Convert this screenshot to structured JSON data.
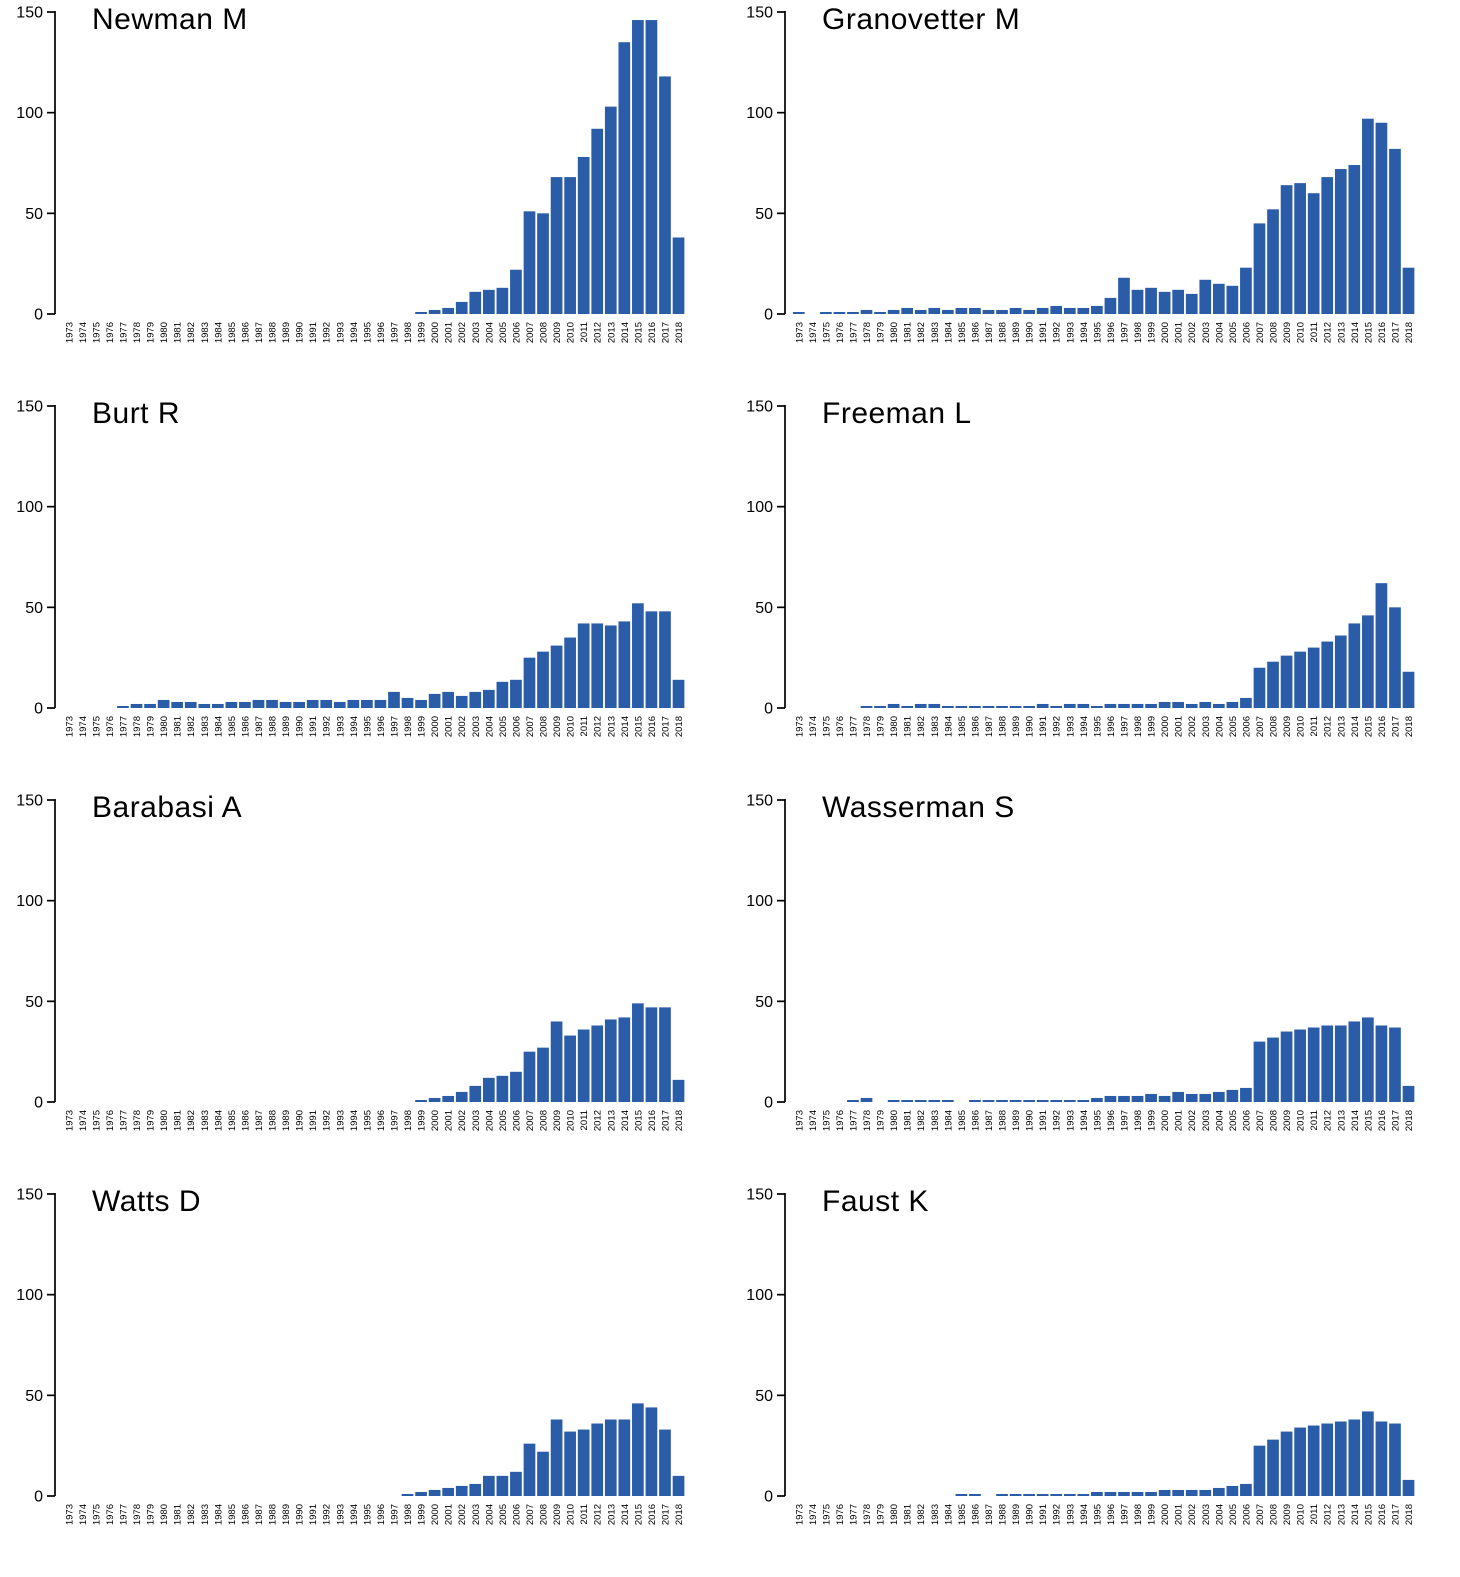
{
  "figure": {
    "bar_color": "#2A5CA8",
    "axis_color": "#000000",
    "background": "#FFFFFF"
  },
  "chart_data": [
    {
      "type": "bar",
      "title": "Newman M",
      "xlabel": "",
      "ylabel": "",
      "ylim": [
        0,
        150
      ],
      "yticks": [
        0,
        50,
        100,
        150
      ],
      "categories": [
        1973,
        1974,
        1975,
        1976,
        1977,
        1978,
        1979,
        1980,
        1981,
        1982,
        1983,
        1984,
        1985,
        1986,
        1987,
        1988,
        1989,
        1990,
        1991,
        1992,
        1993,
        1994,
        1995,
        1996,
        1997,
        1998,
        1999,
        2000,
        2001,
        2002,
        2003,
        2004,
        2005,
        2006,
        2007,
        2008,
        2009,
        2010,
        2011,
        2012,
        2013,
        2014,
        2015,
        2016,
        2017,
        2018
      ],
      "values": [
        0,
        0,
        0,
        0,
        0,
        0,
        0,
        0,
        0,
        0,
        0,
        0,
        0,
        0,
        0,
        0,
        0,
        0,
        0,
        0,
        0,
        0,
        0,
        0,
        0,
        0,
        1,
        2,
        3,
        6,
        11,
        12,
        13,
        22,
        51,
        50,
        68,
        68,
        78,
        92,
        103,
        135,
        146,
        146,
        118,
        38
      ]
    },
    {
      "type": "bar",
      "title": "Granovetter M",
      "xlabel": "",
      "ylabel": "",
      "ylim": [
        0,
        150
      ],
      "yticks": [
        0,
        50,
        100,
        150
      ],
      "categories": [
        1973,
        1974,
        1975,
        1976,
        1977,
        1978,
        1979,
        1980,
        1981,
        1982,
        1983,
        1984,
        1985,
        1986,
        1987,
        1988,
        1989,
        1990,
        1991,
        1992,
        1993,
        1994,
        1995,
        1996,
        1997,
        1998,
        1999,
        2000,
        2001,
        2002,
        2003,
        2004,
        2005,
        2006,
        2007,
        2008,
        2009,
        2010,
        2011,
        2012,
        2013,
        2014,
        2015,
        2016,
        2017,
        2018
      ],
      "values": [
        1,
        0,
        1,
        1,
        1,
        2,
        1,
        2,
        3,
        2,
        3,
        2,
        3,
        3,
        2,
        2,
        3,
        2,
        3,
        4,
        3,
        3,
        4,
        8,
        18,
        12,
        13,
        11,
        12,
        10,
        17,
        15,
        14,
        23,
        45,
        52,
        64,
        65,
        60,
        68,
        72,
        74,
        97,
        95,
        82,
        23
      ]
    },
    {
      "type": "bar",
      "title": "Burt R",
      "xlabel": "",
      "ylabel": "",
      "ylim": [
        0,
        150
      ],
      "yticks": [
        0,
        50,
        100,
        150
      ],
      "categories": [
        1973,
        1974,
        1975,
        1976,
        1977,
        1978,
        1979,
        1980,
        1981,
        1982,
        1983,
        1984,
        1985,
        1986,
        1987,
        1988,
        1989,
        1990,
        1991,
        1992,
        1993,
        1994,
        1995,
        1996,
        1997,
        1998,
        1999,
        2000,
        2001,
        2002,
        2003,
        2004,
        2005,
        2006,
        2007,
        2008,
        2009,
        2010,
        2011,
        2012,
        2013,
        2014,
        2015,
        2016,
        2017,
        2018
      ],
      "values": [
        0,
        0,
        0,
        0,
        1,
        2,
        2,
        4,
        3,
        3,
        2,
        2,
        3,
        3,
        4,
        4,
        3,
        3,
        4,
        4,
        3,
        4,
        4,
        4,
        8,
        5,
        4,
        7,
        8,
        6,
        8,
        9,
        13,
        14,
        25,
        28,
        31,
        35,
        42,
        42,
        41,
        43,
        52,
        48,
        48,
        14
      ]
    },
    {
      "type": "bar",
      "title": "Freeman L",
      "xlabel": "",
      "ylabel": "",
      "ylim": [
        0,
        150
      ],
      "yticks": [
        0,
        50,
        100,
        150
      ],
      "categories": [
        1973,
        1974,
        1975,
        1976,
        1977,
        1978,
        1979,
        1980,
        1981,
        1982,
        1983,
        1984,
        1985,
        1986,
        1987,
        1988,
        1989,
        1990,
        1991,
        1992,
        1993,
        1994,
        1995,
        1996,
        1997,
        1998,
        1999,
        2000,
        2001,
        2002,
        2003,
        2004,
        2005,
        2006,
        2007,
        2008,
        2009,
        2010,
        2011,
        2012,
        2013,
        2014,
        2015,
        2016,
        2017,
        2018
      ],
      "values": [
        0,
        0,
        0,
        0,
        0,
        1,
        1,
        2,
        1,
        2,
        2,
        1,
        1,
        1,
        1,
        1,
        1,
        1,
        2,
        1,
        2,
        2,
        1,
        2,
        2,
        2,
        2,
        3,
        3,
        2,
        3,
        2,
        3,
        5,
        20,
        23,
        26,
        28,
        30,
        33,
        36,
        42,
        46,
        62,
        50,
        18
      ]
    },
    {
      "type": "bar",
      "title": "Barabasi A",
      "xlabel": "",
      "ylabel": "",
      "ylim": [
        0,
        150
      ],
      "yticks": [
        0,
        50,
        100,
        150
      ],
      "categories": [
        1973,
        1974,
        1975,
        1976,
        1977,
        1978,
        1979,
        1980,
        1981,
        1982,
        1983,
        1984,
        1985,
        1986,
        1987,
        1988,
        1989,
        1990,
        1991,
        1992,
        1993,
        1994,
        1995,
        1996,
        1997,
        1998,
        1999,
        2000,
        2001,
        2002,
        2003,
        2004,
        2005,
        2006,
        2007,
        2008,
        2009,
        2010,
        2011,
        2012,
        2013,
        2014,
        2015,
        2016,
        2017,
        2018
      ],
      "values": [
        0,
        0,
        0,
        0,
        0,
        0,
        0,
        0,
        0,
        0,
        0,
        0,
        0,
        0,
        0,
        0,
        0,
        0,
        0,
        0,
        0,
        0,
        0,
        0,
        0,
        0,
        1,
        2,
        3,
        5,
        8,
        12,
        13,
        15,
        25,
        27,
        40,
        33,
        36,
        38,
        41,
        42,
        49,
        47,
        47,
        11
      ]
    },
    {
      "type": "bar",
      "title": "Wasserman S",
      "xlabel": "",
      "ylabel": "",
      "ylim": [
        0,
        150
      ],
      "yticks": [
        0,
        50,
        100,
        150
      ],
      "categories": [
        1973,
        1974,
        1975,
        1976,
        1977,
        1978,
        1979,
        1980,
        1981,
        1982,
        1983,
        1984,
        1985,
        1986,
        1987,
        1988,
        1989,
        1990,
        1991,
        1992,
        1993,
        1994,
        1995,
        1996,
        1997,
        1998,
        1999,
        2000,
        2001,
        2002,
        2003,
        2004,
        2005,
        2006,
        2007,
        2008,
        2009,
        2010,
        2011,
        2012,
        2013,
        2014,
        2015,
        2016,
        2017,
        2018
      ],
      "values": [
        0,
        0,
        0,
        0,
        1,
        2,
        0,
        1,
        1,
        1,
        1,
        1,
        0,
        1,
        1,
        1,
        1,
        1,
        1,
        1,
        1,
        1,
        2,
        3,
        3,
        3,
        4,
        3,
        5,
        4,
        4,
        5,
        6,
        7,
        30,
        32,
        35,
        36,
        37,
        38,
        38,
        40,
        42,
        38,
        37,
        8
      ]
    },
    {
      "type": "bar",
      "title": "Watts D",
      "xlabel": "",
      "ylabel": "",
      "ylim": [
        0,
        150
      ],
      "yticks": [
        0,
        50,
        100,
        150
      ],
      "categories": [
        1973,
        1974,
        1975,
        1976,
        1977,
        1978,
        1979,
        1980,
        1981,
        1982,
        1983,
        1984,
        1985,
        1986,
        1987,
        1988,
        1989,
        1990,
        1991,
        1992,
        1993,
        1994,
        1995,
        1996,
        1997,
        1998,
        1999,
        2000,
        2001,
        2002,
        2003,
        2004,
        2005,
        2006,
        2007,
        2008,
        2009,
        2010,
        2011,
        2012,
        2013,
        2014,
        2015,
        2016,
        2017,
        2018
      ],
      "values": [
        0,
        0,
        0,
        0,
        0,
        0,
        0,
        0,
        0,
        0,
        0,
        0,
        0,
        0,
        0,
        0,
        0,
        0,
        0,
        0,
        0,
        0,
        0,
        0,
        0,
        1,
        2,
        3,
        4,
        5,
        6,
        10,
        10,
        12,
        26,
        22,
        38,
        32,
        33,
        36,
        38,
        38,
        46,
        44,
        33,
        10
      ]
    },
    {
      "type": "bar",
      "title": "Faust K",
      "xlabel": "",
      "ylabel": "",
      "ylim": [
        0,
        150
      ],
      "yticks": [
        0,
        50,
        100,
        150
      ],
      "categories": [
        1973,
        1974,
        1975,
        1976,
        1977,
        1978,
        1979,
        1980,
        1981,
        1982,
        1983,
        1984,
        1985,
        1986,
        1987,
        1988,
        1989,
        1990,
        1991,
        1992,
        1993,
        1994,
        1995,
        1996,
        1997,
        1998,
        1999,
        2000,
        2001,
        2002,
        2003,
        2004,
        2005,
        2006,
        2007,
        2008,
        2009,
        2010,
        2011,
        2012,
        2013,
        2014,
        2015,
        2016,
        2017,
        2018
      ],
      "values": [
        0,
        0,
        0,
        0,
        0,
        0,
        0,
        0,
        0,
        0,
        0,
        0,
        1,
        1,
        0,
        1,
        1,
        1,
        1,
        1,
        1,
        1,
        2,
        2,
        2,
        2,
        2,
        3,
        3,
        3,
        3,
        4,
        5,
        6,
        25,
        28,
        32,
        34,
        35,
        36,
        37,
        38,
        42,
        37,
        36,
        8
      ]
    }
  ]
}
